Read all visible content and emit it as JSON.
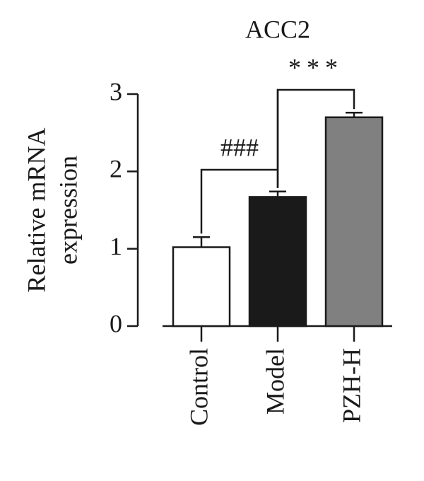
{
  "chart_data": {
    "type": "bar",
    "title": "ACC2",
    "ylabel": [
      "Relative mRNA",
      "expression"
    ],
    "categories": [
      "Control",
      "Model",
      "PZH-H"
    ],
    "values": [
      1.02,
      1.67,
      2.7
    ],
    "errors": [
      0.13,
      0.07,
      0.06
    ],
    "colors": [
      "#ffffff",
      "#1a1a1a",
      "#808080"
    ],
    "ylim": [
      0,
      3
    ],
    "yticks": [
      0,
      1,
      2,
      3
    ],
    "annotations": [
      "###",
      "***"
    ]
  }
}
